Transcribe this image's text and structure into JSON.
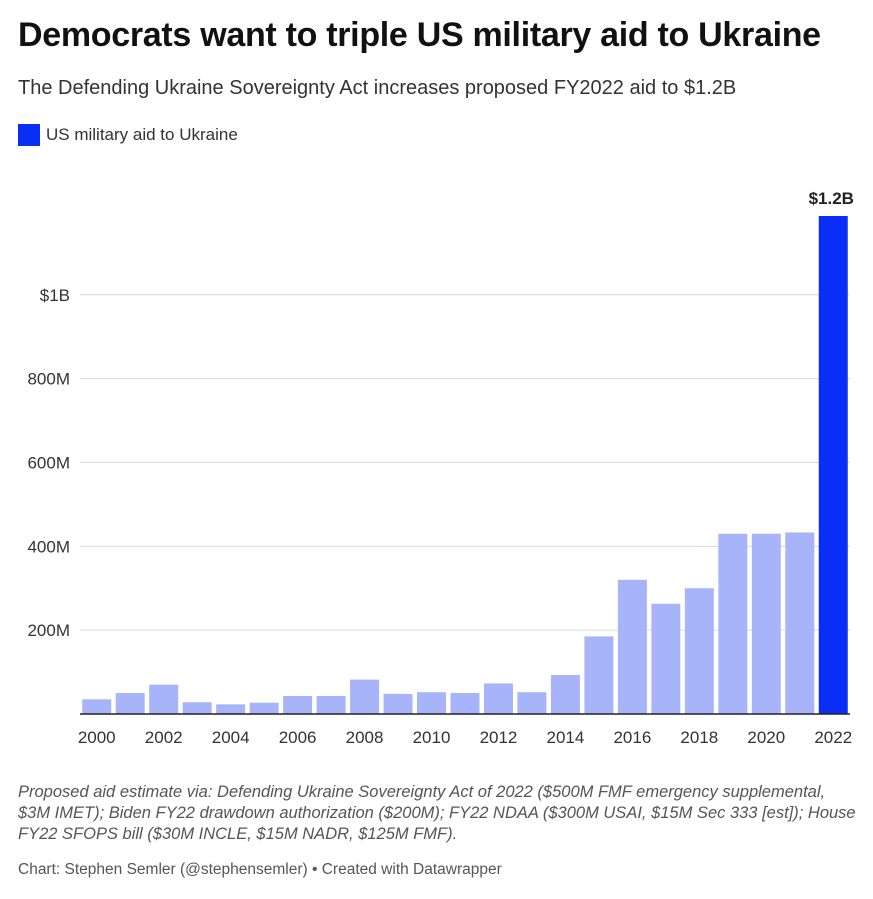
{
  "title": "Democrats want to triple US military aid to Ukraine",
  "subtitle": "The Defending Ukraine Sovereignty Act increases proposed FY2022 aid to $1.2B",
  "notes": "Proposed aid estimate via: Defending Ukraine Sovereignty Act of 2022 ($500M FMF emergency supplemental, $3M IMET); Biden FY22 drawdown authorization ($200M); FY22 NDAA ($300M USAI, $15M Sec 333 [est]); House FY22 SFOPS bill ($30M INCLE, $15M NADR, $125M FMF).",
  "byline": "Chart: Stephen Semler (@stephensemler) • Created with Datawrapper",
  "colors": {
    "base_bar": "#a8b4fa",
    "highlight_bar": "#0a2ef5",
    "grid": "#d9d9d9",
    "axis": "#222222"
  },
  "chart_data": {
    "type": "bar",
    "legend": [
      {
        "name": "US military aid to Ukraine",
        "color": "#0a2ef5"
      }
    ],
    "categories": [
      "2000",
      "2001",
      "2002",
      "2003",
      "2004",
      "2005",
      "2006",
      "2007",
      "2008",
      "2009",
      "2010",
      "2011",
      "2012",
      "2013",
      "2014",
      "2015",
      "2016",
      "2017",
      "2018",
      "2019",
      "2020",
      "2021",
      "2022"
    ],
    "x_tick_labels": [
      "2000",
      "2002",
      "2004",
      "2006",
      "2008",
      "2010",
      "2012",
      "2014",
      "2016",
      "2018",
      "2020",
      "2022"
    ],
    "series": [
      {
        "name": "US military aid to Ukraine",
        "values": [
          35,
          50,
          70,
          28,
          23,
          27,
          43,
          43,
          82,
          48,
          52,
          50,
          73,
          52,
          93,
          185,
          320,
          263,
          300,
          430,
          430,
          433,
          1188
        ]
      }
    ],
    "highlight_category": "2022",
    "data_labels": [
      {
        "category": "2022",
        "text": "$1.2B"
      }
    ],
    "y_ticks": [
      {
        "value": 200,
        "label": "200M"
      },
      {
        "value": 400,
        "label": "400M"
      },
      {
        "value": 600,
        "label": "600M"
      },
      {
        "value": 800,
        "label": "800M"
      },
      {
        "value": 1000,
        "label": "$1B"
      }
    ],
    "ylim": [
      0,
      1188
    ],
    "grid": true,
    "legend_placement": "top-left"
  }
}
